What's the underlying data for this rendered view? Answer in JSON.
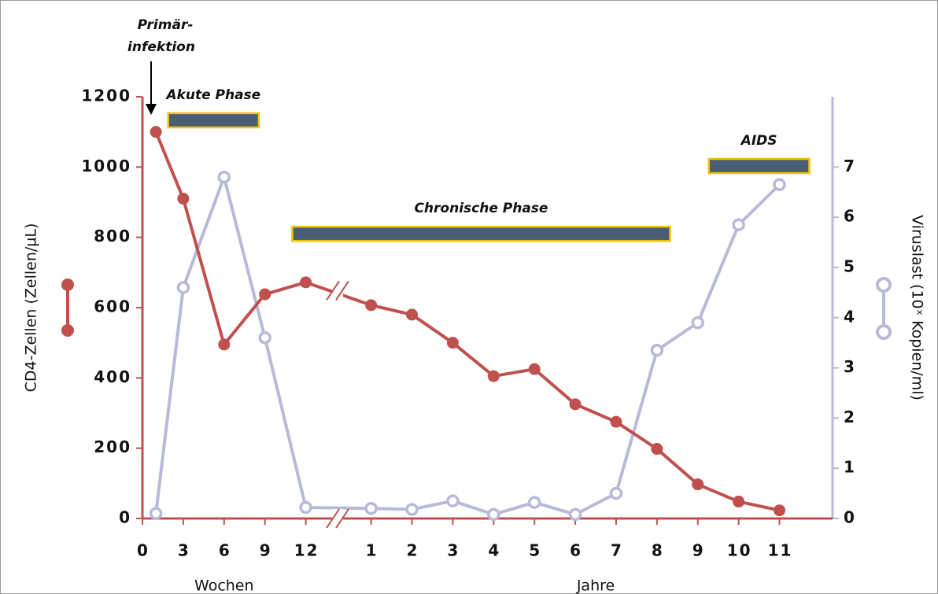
{
  "chart_data": {
    "type": "line",
    "xlim": [
      0,
      16.9
    ],
    "xticks": [
      {
        "value": 0,
        "label": "0"
      },
      {
        "value": 1,
        "label": "3"
      },
      {
        "value": 2,
        "label": "6"
      },
      {
        "value": 3,
        "label": "9"
      },
      {
        "value": 4,
        "label": "12"
      },
      {
        "value": 5.6,
        "label": "1"
      },
      {
        "value": 6.6,
        "label": "2"
      },
      {
        "value": 7.6,
        "label": "3"
      },
      {
        "value": 8.6,
        "label": "4"
      },
      {
        "value": 9.6,
        "label": "5"
      },
      {
        "value": 10.6,
        "label": "6"
      },
      {
        "value": 11.6,
        "label": "7"
      },
      {
        "value": 12.6,
        "label": "8"
      },
      {
        "value": 13.6,
        "label": "9"
      },
      {
        "value": 14.6,
        "label": "10"
      },
      {
        "value": 15.6,
        "label": "11"
      }
    ],
    "x_groups": [
      {
        "label": "Wochen",
        "x": 2
      },
      {
        "label": "Jahre",
        "x": 11.1
      }
    ],
    "x": [
      0.33,
      1,
      2,
      3,
      4,
      5.6,
      6.6,
      7.6,
      8.6,
      9.6,
      10.6,
      11.6,
      12.6,
      13.6,
      14.6,
      15.6
    ],
    "ylim": [
      0,
      1200
    ],
    "yticks": [
      0,
      200,
      400,
      600,
      800,
      1000,
      1200
    ],
    "y2lim": [
      0,
      8.4
    ],
    "y2ticks": [
      0,
      1,
      2,
      3,
      4,
      5,
      6,
      7
    ],
    "ylabel": "CD4-Zellen (Zellen/µL)",
    "y2label": "Viruslast (10ˣ Kopien/ml)",
    "series": [
      {
        "color": "#c0504d",
        "marker": "filled",
        "values": [
          1100,
          910,
          495,
          638,
          672,
          607,
          580,
          500,
          405,
          425,
          325,
          275,
          198,
          97,
          48,
          23
        ]
      },
      {
        "color": "#b9b9d9",
        "marker": "hollow",
        "axis": "y2",
        "values": [
          0.1,
          4.6,
          6.8,
          3.6,
          0.22,
          0.2,
          0.18,
          0.35,
          0.08,
          0.32,
          0.08,
          0.5,
          3.35,
          3.9,
          5.85,
          6.65
        ]
      }
    ],
    "phases": [
      {
        "label": "Akute Phase",
        "x": [
          0.63,
          2.85
        ],
        "y": 1133
      },
      {
        "label": "Chronische Phase",
        "x": [
          3.67,
          12.92
        ],
        "y": 810
      },
      {
        "label": "AIDS",
        "x": [
          13.87,
          16.33
        ],
        "y": 1003
      }
    ],
    "annotation": [
      "Primär-",
      "infektion"
    ]
  }
}
